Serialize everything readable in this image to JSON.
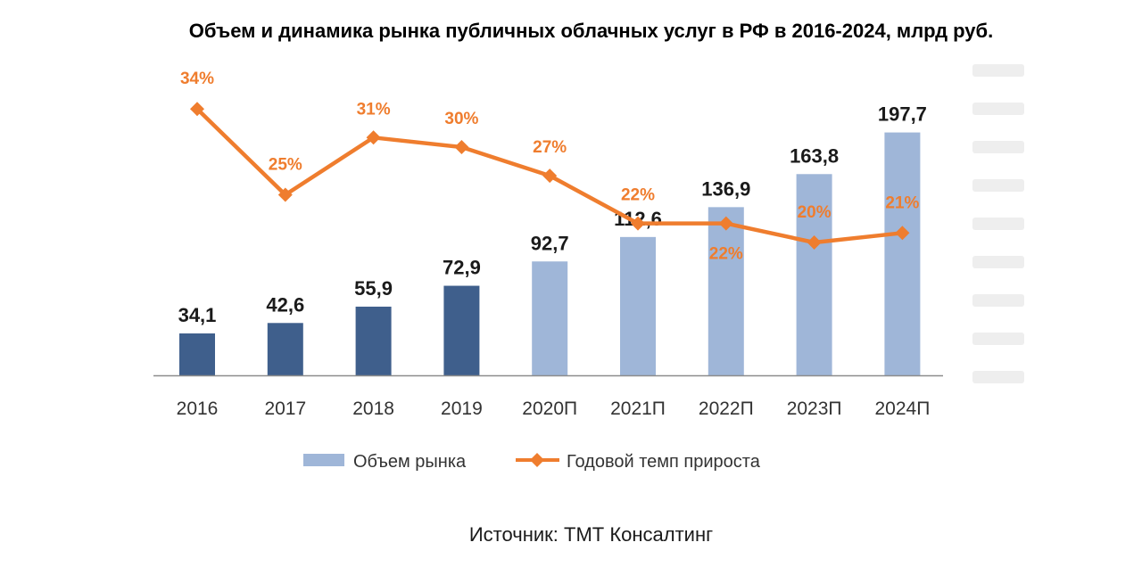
{
  "title": "Объем и динамика рынка публичных облачных услуг в РФ в 2016-2024, млрд руб.",
  "source": "Источник: ТМТ Консалтинг",
  "colors": {
    "bar_actual": "#3f5f8c",
    "bar_forecast": "#9fb6d8",
    "line": "#ef7d2e",
    "axis": "#8c8c8c",
    "ghost_axis": "#eeeeee"
  },
  "chart_data": {
    "type": "bar",
    "categories": [
      "2016",
      "2017",
      "2018",
      "2019",
      "2020П",
      "2021П",
      "2022П",
      "2023П",
      "2024П"
    ],
    "forecast_from_index": 4,
    "series": [
      {
        "name": "Объем рынка",
        "type": "bar",
        "values": [
          34.1,
          42.6,
          55.9,
          72.9,
          92.7,
          112.6,
          136.9,
          163.8,
          197.7
        ],
        "labels": [
          "34,1",
          "42,6",
          "55,9",
          "72,9",
          "92,7",
          "112,6",
          "136,9",
          "163,8",
          "197,7"
        ]
      },
      {
        "name": "Годовой темп прироста",
        "type": "line",
        "values": [
          34,
          25,
          31,
          30,
          27,
          22,
          22,
          20,
          21
        ],
        "labels": [
          "34%",
          "25%",
          "31%",
          "30%",
          "27%",
          "22%",
          "22%",
          "20%",
          "21%"
        ]
      }
    ],
    "legend_position": "bottom",
    "grid": false
  }
}
